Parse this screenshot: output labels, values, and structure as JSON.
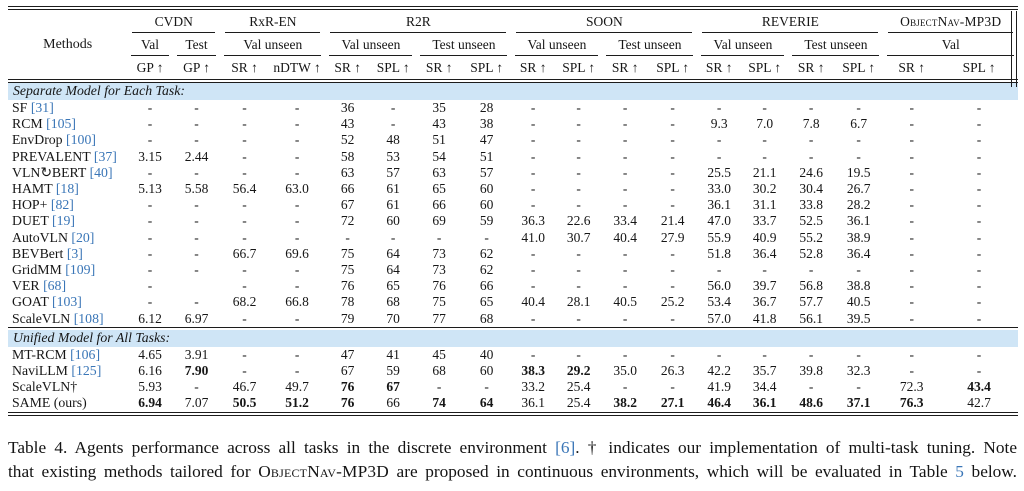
{
  "colors": {
    "citation_blue": "#3a76b7",
    "section_band_blue": "#cfe5f6",
    "rule_black": "#1c1c1c"
  },
  "table": {
    "methods_header": "Methods",
    "groups": [
      {
        "label": "CVDN",
        "smallcaps": false,
        "subs": [
          {
            "label": "Val",
            "cols": [
              "GP ↑"
            ]
          },
          {
            "label": "Test",
            "cols": [
              "GP ↑"
            ]
          }
        ]
      },
      {
        "label": "RxR-EN",
        "smallcaps": false,
        "subs": [
          {
            "label": "Val unseen",
            "cols": [
              "SR ↑",
              "nDTW ↑"
            ]
          }
        ]
      },
      {
        "label": "R2R",
        "smallcaps": false,
        "subs": [
          {
            "label": "Val unseen",
            "cols": [
              "SR ↑",
              "SPL ↑"
            ]
          },
          {
            "label": "Test unseen",
            "cols": [
              "SR ↑",
              "SPL ↑"
            ]
          }
        ]
      },
      {
        "label": "SOON",
        "smallcaps": false,
        "subs": [
          {
            "label": "Val unseen",
            "cols": [
              "SR ↑",
              "SPL ↑"
            ]
          },
          {
            "label": "Test unseen",
            "cols": [
              "SR ↑",
              "SPL ↑"
            ]
          }
        ]
      },
      {
        "label": "REVERIE",
        "smallcaps": false,
        "subs": [
          {
            "label": "Val unseen",
            "cols": [
              "SR ↑",
              "SPL ↑"
            ]
          },
          {
            "label": "Test unseen",
            "cols": [
              "SR ↑",
              "SPL ↑"
            ]
          }
        ]
      },
      {
        "label": "ObjectNav-MP3D",
        "smallcaps": true,
        "subs": [
          {
            "label": "Val",
            "cols": [
              "SR ↑",
              "SPL ↑"
            ]
          }
        ]
      }
    ],
    "sections": [
      {
        "title": "Separate Model for Each Task:",
        "rows": [
          {
            "method": "SF",
            "cite": "[31]",
            "bold": [],
            "cells": [
              "-",
              "-",
              "-",
              "-",
              "36",
              "-",
              "35",
              "28",
              "-",
              "-",
              "-",
              "-",
              "-",
              "-",
              "-",
              "-",
              "-",
              "-"
            ]
          },
          {
            "method": "RCM",
            "cite": "[105]",
            "bold": [],
            "cells": [
              "-",
              "-",
              "-",
              "-",
              "43",
              "-",
              "43",
              "38",
              "-",
              "-",
              "-",
              "-",
              "9.3",
              "7.0",
              "7.8",
              "6.7",
              "-",
              "-"
            ]
          },
          {
            "method": "EnvDrop",
            "cite": "[100]",
            "bold": [],
            "cells": [
              "-",
              "-",
              "-",
              "-",
              "52",
              "48",
              "51",
              "47",
              "-",
              "-",
              "-",
              "-",
              "-",
              "-",
              "-",
              "-",
              "-",
              "-"
            ]
          },
          {
            "method": "PREVALENT",
            "cite": "[37]",
            "bold": [],
            "cells": [
              "3.15",
              "2.44",
              "-",
              "-",
              "58",
              "53",
              "54",
              "51",
              "-",
              "-",
              "-",
              "-",
              "-",
              "-",
              "-",
              "-",
              "-",
              "-"
            ]
          },
          {
            "method": "VLN↻BERT",
            "cite": "[40]",
            "bold": [],
            "cells": [
              "-",
              "-",
              "-",
              "-",
              "63",
              "57",
              "63",
              "57",
              "-",
              "-",
              "-",
              "-",
              "25.5",
              "21.1",
              "24.6",
              "19.5",
              "-",
              "-"
            ]
          },
          {
            "method": "HAMT",
            "cite": "[18]",
            "bold": [],
            "cells": [
              "5.13",
              "5.58",
              "56.4",
              "63.0",
              "66",
              "61",
              "65",
              "60",
              "-",
              "-",
              "-",
              "-",
              "33.0",
              "30.2",
              "30.4",
              "26.7",
              "-",
              "-"
            ]
          },
          {
            "method": "HOP+",
            "cite": "[82]",
            "bold": [],
            "cells": [
              "-",
              "-",
              "-",
              "-",
              "67",
              "61",
              "66",
              "60",
              "-",
              "-",
              "-",
              "-",
              "36.1",
              "31.1",
              "33.8",
              "28.2",
              "-",
              "-"
            ]
          },
          {
            "method": "DUET",
            "cite": "[19]",
            "bold": [],
            "cells": [
              "-",
              "-",
              "-",
              "-",
              "72",
              "60",
              "69",
              "59",
              "36.3",
              "22.6",
              "33.4",
              "21.4",
              "47.0",
              "33.7",
              "52.5",
              "36.1",
              "-",
              "-"
            ]
          },
          {
            "method": "AutoVLN",
            "cite": "[20]",
            "bold": [],
            "cells": [
              "-",
              "-",
              "-",
              "-",
              "-",
              "-",
              "-",
              "-",
              "41.0",
              "30.7",
              "40.4",
              "27.9",
              "55.9",
              "40.9",
              "55.2",
              "38.9",
              "-",
              "-"
            ]
          },
          {
            "method": "BEVBert",
            "cite": "[3]",
            "bold": [],
            "cells": [
              "-",
              "-",
              "66.7",
              "69.6",
              "75",
              "64",
              "73",
              "62",
              "-",
              "-",
              "-",
              "-",
              "51.8",
              "36.4",
              "52.8",
              "36.4",
              "-",
              "-"
            ]
          },
          {
            "method": "GridMM",
            "cite": "[109]",
            "bold": [],
            "cells": [
              "-",
              "-",
              "-",
              "-",
              "75",
              "64",
              "73",
              "62",
              "-",
              "-",
              "-",
              "-",
              "-",
              "-",
              "-",
              "-",
              "-",
              "-"
            ]
          },
          {
            "method": "VER",
            "cite": "[68]",
            "bold": [],
            "cells": [
              "-",
              "",
              "-",
              "-",
              "76",
              "65",
              "76",
              "66",
              "-",
              "-",
              "-",
              "-",
              "56.0",
              "39.7",
              "56.8",
              "38.8",
              "-",
              "-"
            ]
          },
          {
            "method": "GOAT",
            "cite": "[103]",
            "bold": [],
            "cells": [
              "-",
              "-",
              "68.2",
              "66.8",
              "78",
              "68",
              "75",
              "65",
              "40.4",
              "28.1",
              "40.5",
              "25.2",
              "53.4",
              "36.7",
              "57.7",
              "40.5",
              "-",
              "-"
            ]
          },
          {
            "method": "ScaleVLN",
            "cite": "[108]",
            "bold": [],
            "cells": [
              "6.12",
              "6.97",
              "-",
              "-",
              "79",
              "70",
              "77",
              "68",
              "-",
              "-",
              "-",
              "-",
              "57.0",
              "41.8",
              "56.1",
              "39.5",
              "-",
              "-"
            ]
          }
        ]
      },
      {
        "title": "Unified Model for All Tasks:",
        "rows": [
          {
            "method": "MT-RCM",
            "cite": "[106]",
            "bold": [],
            "cells": [
              "4.65",
              "3.91",
              "-",
              "-",
              "47",
              "41",
              "45",
              "40",
              "-",
              "-",
              "-",
              "-",
              "-",
              "-",
              "-",
              "-",
              "-",
              "-"
            ]
          },
          {
            "method": "NaviLLM",
            "cite": "[125]",
            "bold": [
              1,
              8,
              9
            ],
            "cells": [
              "6.16",
              "7.90",
              "-",
              "-",
              "67",
              "59",
              "68",
              "60",
              "38.3",
              "29.2",
              "35.0",
              "26.3",
              "42.2",
              "35.7",
              "39.8",
              "32.3",
              "-",
              "-"
            ]
          },
          {
            "method": "ScaleVLN†",
            "cite": "",
            "bold": [
              4,
              5,
              17
            ],
            "cells": [
              "5.93",
              "-",
              "46.7",
              "49.7",
              "76",
              "67",
              "-",
              "-",
              "33.2",
              "25.4",
              "-",
              "-",
              "41.9",
              "34.4",
              "-",
              "-",
              "72.3",
              "43.4"
            ]
          },
          {
            "method": "SAME (ours)",
            "cite": "",
            "bold": [
              0,
              2,
              3,
              4,
              6,
              7,
              10,
              11,
              12,
              13,
              14,
              15,
              16
            ],
            "cells": [
              "6.94",
              "7.07",
              "50.5",
              "51.2",
              "76",
              "66",
              "74",
              "64",
              "36.1",
              "25.4",
              "38.2",
              "27.1",
              "46.4",
              "36.1",
              "48.6",
              "37.1",
              "76.3",
              "42.7"
            ]
          }
        ]
      }
    ]
  },
  "caption": {
    "lines": [
      [
        {
          "t": "Table 4.  Agents performance across all tasks in the discrete environment "
        },
        {
          "t": "[6]",
          "c": "cite"
        },
        {
          "t": ".  † indicates our implementation of multi-task tuning.  Note"
        }
      ],
      [
        {
          "t": "that existing methods tailored for "
        },
        {
          "t": "ObjectNav-MP3D",
          "c": "sc"
        },
        {
          "t": " are proposed in continuous environments, which will be evaluated in Table "
        },
        {
          "t": "5",
          "c": "cite"
        },
        {
          "t": " below."
        }
      ]
    ]
  }
}
